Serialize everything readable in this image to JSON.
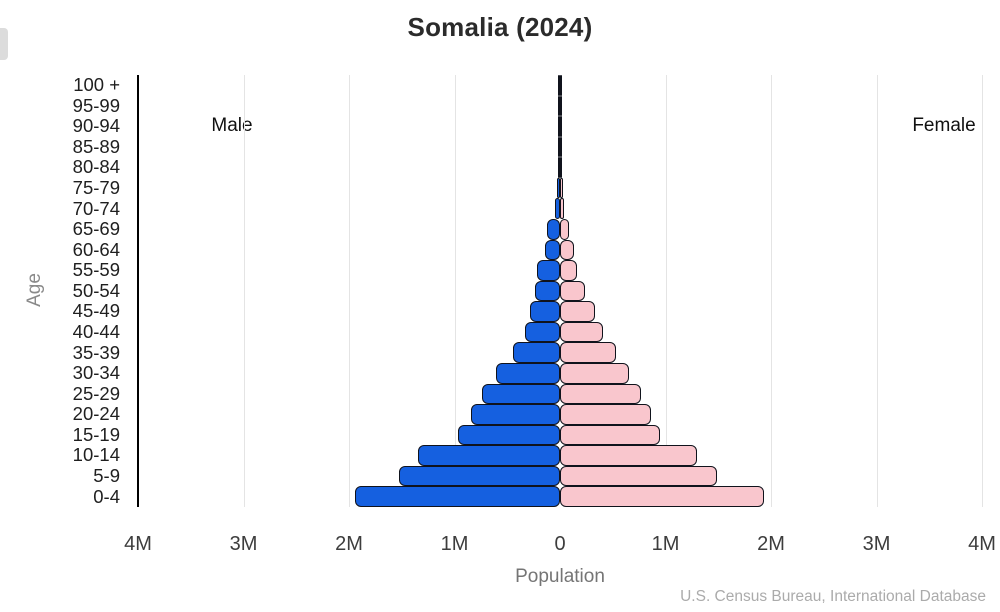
{
  "title": "Somalia (2024)",
  "labels": {
    "male": "Male",
    "female": "Female",
    "age_axis": "Age",
    "population_axis": "Population",
    "source": "U.S. Census Bureau, International Database"
  },
  "colors": {
    "male_bar": "#1560e0",
    "female_bar": "#f9c6cd",
    "bar_outline": "#10131c",
    "axis_line": "#000000",
    "gridline": "#e4e4e4",
    "title_text": "#2b2b2b",
    "tick_text": "#3d3d3d",
    "muted_text": "#8a8a8a",
    "source_text": "#ababab"
  },
  "x_axis": {
    "tick_labels": [
      "4M",
      "3M",
      "2M",
      "1M",
      "0",
      "1M",
      "2M",
      "3M",
      "4M"
    ],
    "unit": "millions",
    "max_each_side": 4
  },
  "chart_data": {
    "type": "bar",
    "subtype": "population-pyramid",
    "title": "Somalia (2024)",
    "xlabel": "Population",
    "ylabel": "Age",
    "grid": true,
    "axis_range_each_side_millions": [
      0,
      4
    ],
    "categories_top_to_bottom": [
      "100 +",
      "95-99",
      "90-94",
      "85-89",
      "80-84",
      "75-79",
      "70-74",
      "65-69",
      "60-64",
      "55-59",
      "50-54",
      "45-49",
      "40-44",
      "35-39",
      "30-34",
      "25-29",
      "20-24",
      "15-19",
      "10-14",
      "5-9",
      "0-4"
    ],
    "series": [
      {
        "name": "Male",
        "side": "left",
        "color": "#1560e0",
        "values_millions": [
          0.001,
          0.002,
          0.004,
          0.008,
          0.015,
          0.03,
          0.05,
          0.12,
          0.14,
          0.22,
          0.24,
          0.28,
          0.33,
          0.45,
          0.61,
          0.74,
          0.84,
          0.97,
          1.35,
          1.53,
          1.94
        ]
      },
      {
        "name": "Female",
        "side": "right",
        "color": "#f9c6cd",
        "values_millions": [
          0.001,
          0.002,
          0.003,
          0.007,
          0.013,
          0.025,
          0.04,
          0.09,
          0.13,
          0.16,
          0.24,
          0.33,
          0.41,
          0.53,
          0.65,
          0.77,
          0.86,
          0.95,
          1.3,
          1.49,
          1.93
        ]
      }
    ]
  }
}
